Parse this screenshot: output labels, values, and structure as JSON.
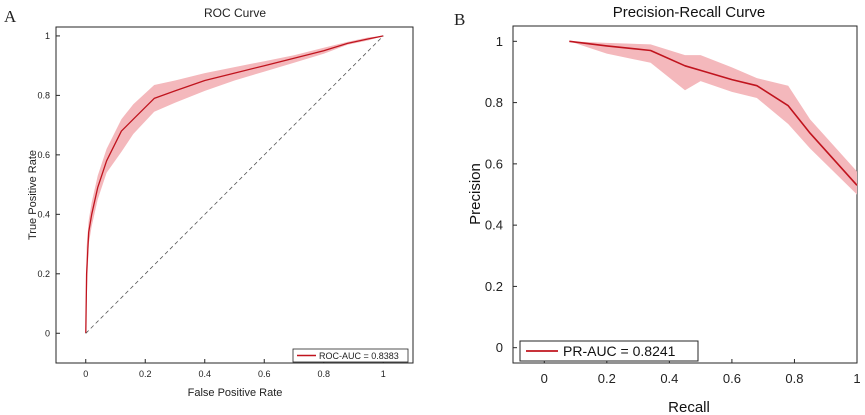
{
  "chart_data": [
    {
      "type": "line",
      "panel_label": "A",
      "title": "ROC Curve",
      "xlabel": "False Positive Rate",
      "ylabel": "True Positive Rate",
      "xlim": [
        -0.1,
        1.1
      ],
      "ylim": [
        -0.1,
        1.03
      ],
      "xticks": [
        0,
        0.2,
        0.4,
        0.6,
        0.8,
        1
      ],
      "xtick_labels": [
        "0",
        "0.2",
        "0.4",
        "0.6",
        "0.8",
        "1"
      ],
      "yticks": [
        0,
        0.2,
        0.4,
        0.6,
        0.8,
        1
      ],
      "ytick_labels": [
        "0",
        "0.2",
        "0.4",
        "0.6",
        "0.8",
        "1"
      ],
      "legend": {
        "label": "ROC-AUC = 0.8383",
        "position": "bottom-right"
      },
      "series": [
        {
          "name": "ROC-AUC = 0.8383",
          "color": "#c0141e",
          "band_color": "#f4b8bc",
          "x": [
            0,
            0.003,
            0.01,
            0.02,
            0.04,
            0.07,
            0.12,
            0.16,
            0.23,
            0.3,
            0.4,
            0.5,
            0.6,
            0.7,
            0.8,
            0.88,
            0.95,
            1.0
          ],
          "y": [
            0,
            0.2,
            0.34,
            0.4,
            0.49,
            0.58,
            0.68,
            0.72,
            0.79,
            0.815,
            0.85,
            0.875,
            0.9,
            0.925,
            0.95,
            0.975,
            0.99,
            1.0
          ],
          "upper": [
            0,
            0.29,
            0.38,
            0.44,
            0.53,
            0.62,
            0.72,
            0.77,
            0.835,
            0.85,
            0.875,
            0.895,
            0.915,
            0.935,
            0.96,
            0.98,
            0.995,
            1.0
          ],
          "lower": [
            0,
            0.1,
            0.3,
            0.36,
            0.45,
            0.54,
            0.61,
            0.67,
            0.745,
            0.775,
            0.815,
            0.85,
            0.88,
            0.91,
            0.94,
            0.97,
            0.985,
            1.0
          ]
        },
        {
          "name": "chance",
          "style": "dashed",
          "color": "#555555",
          "x": [
            0,
            1
          ],
          "y": [
            0,
            1
          ]
        }
      ]
    },
    {
      "type": "line",
      "panel_label": "B",
      "title": "Precision-Recall Curve",
      "xlabel": "Recall",
      "ylabel": "Precision",
      "xlim": [
        -0.1,
        1.0
      ],
      "ylim": [
        -0.05,
        1.05
      ],
      "xticks": [
        0,
        0.2,
        0.4,
        0.6,
        0.8,
        1
      ],
      "xtick_labels": [
        "0",
        "0.2",
        "0.4",
        "0.6",
        "0.8",
        "1"
      ],
      "yticks": [
        0,
        0.2,
        0.4,
        0.6,
        0.8,
        1
      ],
      "ytick_labels": [
        "0",
        "0.2",
        "0.4",
        "0.6",
        "0.8",
        "1"
      ],
      "legend": {
        "label": "PR-AUC = 0.8241",
        "position": "bottom-left"
      },
      "series": [
        {
          "name": "PR-AUC = 0.8241",
          "color": "#c0141e",
          "band_color": "#f4b8bc",
          "x": [
            0.08,
            0.2,
            0.34,
            0.45,
            0.5,
            0.6,
            0.68,
            0.78,
            0.85,
            1.0
          ],
          "y": [
            1.0,
            0.985,
            0.97,
            0.92,
            0.905,
            0.875,
            0.855,
            0.79,
            0.7,
            0.53
          ],
          "upper": [
            1.0,
            0.995,
            0.99,
            0.955,
            0.955,
            0.915,
            0.88,
            0.855,
            0.745,
            0.575
          ],
          "lower": [
            1.0,
            0.96,
            0.93,
            0.84,
            0.87,
            0.835,
            0.815,
            0.73,
            0.65,
            0.5
          ]
        }
      ]
    }
  ]
}
